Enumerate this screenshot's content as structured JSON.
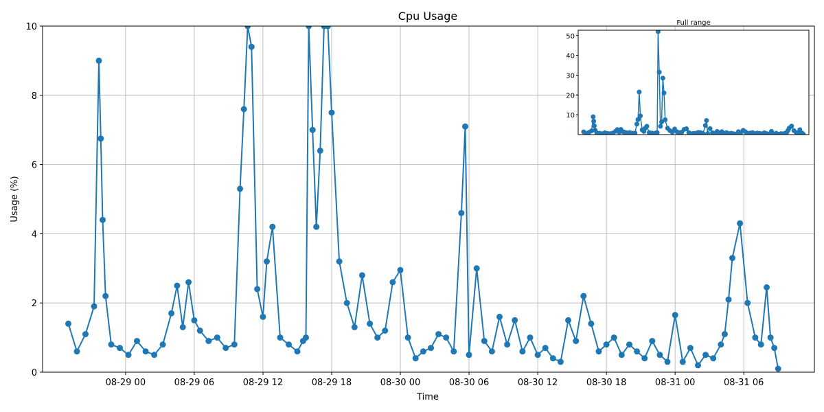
{
  "chart_data": {
    "type": "line",
    "title": "Cpu Usage",
    "xlabel": "Time",
    "ylabel": "Usage (%)",
    "ylim": [
      0,
      10
    ],
    "xlim": [
      "2024-08-28 16:45",
      "2024-08-31 12:10"
    ],
    "grid": true,
    "color": "#1f77b4",
    "marker": "circle",
    "x_ticks": [
      {
        "at": "2024-08-29 00:00",
        "label": "08-29 00"
      },
      {
        "at": "2024-08-29 06:00",
        "label": "08-29 06"
      },
      {
        "at": "2024-08-29 12:00",
        "label": "08-29 12"
      },
      {
        "at": "2024-08-29 18:00",
        "label": "08-29 18"
      },
      {
        "at": "2024-08-30 00:00",
        "label": "08-30 00"
      },
      {
        "at": "2024-08-30 06:00",
        "label": "08-30 06"
      },
      {
        "at": "2024-08-30 12:00",
        "label": "08-30 12"
      },
      {
        "at": "2024-08-30 18:00",
        "label": "08-30 18"
      },
      {
        "at": "2024-08-31 00:00",
        "label": "08-31 00"
      },
      {
        "at": "2024-08-31 06:00",
        "label": "08-31 06"
      }
    ],
    "y_ticks": [
      0,
      2,
      4,
      6,
      8,
      10
    ],
    "series": [
      {
        "x": [
          "2024-08-28 19:00",
          "2024-08-28 19:45",
          "2024-08-28 20:30",
          "2024-08-28 21:15",
          "2024-08-28 21:40",
          "2024-08-28 21:50",
          "2024-08-28 22:00",
          "2024-08-28 22:15",
          "2024-08-28 22:45",
          "2024-08-28 23:30",
          "2024-08-29 00:15",
          "2024-08-29 01:00",
          "2024-08-29 01:45",
          "2024-08-29 02:30",
          "2024-08-29 03:15",
          "2024-08-29 04:00",
          "2024-08-29 04:30",
          "2024-08-29 05:00",
          "2024-08-29 05:30",
          "2024-08-29 06:00",
          "2024-08-29 06:30",
          "2024-08-29 07:15",
          "2024-08-29 08:00",
          "2024-08-29 08:45",
          "2024-08-29 09:30",
          "2024-08-29 10:00",
          "2024-08-29 10:20",
          "2024-08-29 10:40",
          "2024-08-29 11:00",
          "2024-08-29 11:30",
          "2024-08-29 12:00",
          "2024-08-29 12:20",
          "2024-08-29 12:50",
          "2024-08-29 13:30",
          "2024-08-29 14:15",
          "2024-08-29 15:00",
          "2024-08-29 15:30",
          "2024-08-29 15:45",
          "2024-08-29 16:00",
          "2024-08-29 16:20",
          "2024-08-29 16:40",
          "2024-08-29 17:00",
          "2024-08-29 17:20",
          "2024-08-29 17:40",
          "2024-08-29 18:00",
          "2024-08-29 18:40",
          "2024-08-29 19:20",
          "2024-08-29 20:00",
          "2024-08-29 20:40",
          "2024-08-29 21:20",
          "2024-08-29 22:00",
          "2024-08-29 22:40",
          "2024-08-29 23:20",
          "2024-08-30 00:00",
          "2024-08-30 00:40",
          "2024-08-30 01:20",
          "2024-08-30 02:00",
          "2024-08-30 02:40",
          "2024-08-30 03:20",
          "2024-08-30 04:00",
          "2024-08-30 04:40",
          "2024-08-30 05:20",
          "2024-08-30 05:40",
          "2024-08-30 06:00",
          "2024-08-30 06:40",
          "2024-08-30 07:20",
          "2024-08-30 08:00",
          "2024-08-30 08:40",
          "2024-08-30 09:20",
          "2024-08-30 10:00",
          "2024-08-30 10:40",
          "2024-08-30 11:20",
          "2024-08-30 12:00",
          "2024-08-30 12:40",
          "2024-08-30 13:20",
          "2024-08-30 14:00",
          "2024-08-30 14:40",
          "2024-08-30 15:20",
          "2024-08-30 16:00",
          "2024-08-30 16:40",
          "2024-08-30 17:20",
          "2024-08-30 18:00",
          "2024-08-30 18:40",
          "2024-08-30 19:20",
          "2024-08-30 20:00",
          "2024-08-30 20:40",
          "2024-08-30 21:20",
          "2024-08-30 22:00",
          "2024-08-30 22:40",
          "2024-08-30 23:20",
          "2024-08-31 00:00",
          "2024-08-31 00:40",
          "2024-08-31 01:20",
          "2024-08-31 02:00",
          "2024-08-31 02:40",
          "2024-08-31 03:20",
          "2024-08-31 04:00",
          "2024-08-31 04:20",
          "2024-08-31 04:40",
          "2024-08-31 05:00",
          "2024-08-31 05:40",
          "2024-08-31 06:20",
          "2024-08-31 07:00",
          "2024-08-31 07:30",
          "2024-08-31 08:00",
          "2024-08-31 08:20",
          "2024-08-31 08:40",
          "2024-08-31 09:00"
        ],
        "y": [
          1.4,
          0.6,
          1.1,
          1.9,
          9.0,
          6.75,
          4.4,
          2.2,
          0.8,
          0.7,
          0.5,
          0.9,
          0.6,
          0.5,
          0.8,
          1.7,
          2.5,
          1.3,
          2.6,
          1.5,
          1.2,
          0.9,
          1.0,
          0.7,
          0.8,
          5.3,
          7.6,
          10.0,
          9.4,
          2.4,
          1.6,
          3.2,
          4.2,
          1.0,
          0.8,
          0.6,
          0.9,
          1.0,
          10.0,
          7.0,
          4.2,
          6.4,
          10.0,
          10.0,
          7.5,
          3.2,
          2.0,
          1.3,
          2.8,
          1.4,
          1.0,
          1.2,
          2.6,
          2.95,
          1.0,
          0.4,
          0.6,
          0.7,
          1.1,
          1.0,
          0.6,
          4.6,
          7.1,
          0.5,
          3.0,
          0.9,
          0.6,
          1.6,
          0.8,
          1.5,
          0.6,
          1.0,
          0.5,
          0.7,
          0.4,
          0.3,
          1.5,
          0.9,
          2.2,
          1.4,
          0.6,
          0.8,
          1.0,
          0.5,
          0.8,
          0.6,
          0.4,
          0.9,
          0.5,
          0.3,
          1.65,
          0.3,
          0.7,
          0.2,
          0.5,
          0.4,
          0.8,
          1.1,
          2.1,
          3.3,
          4.3,
          2.0,
          1.0,
          0.8,
          2.45,
          1.0,
          0.7,
          0.1
        ],
        "inset_y": [
          1.4,
          0.6,
          1.1,
          1.9,
          9.0,
          6.75,
          4.4,
          2.2,
          0.8,
          0.7,
          0.5,
          0.9,
          0.6,
          0.5,
          0.8,
          1.7,
          2.5,
          1.3,
          2.6,
          1.5,
          1.2,
          0.9,
          1.0,
          0.7,
          0.8,
          5.3,
          7.6,
          21.5,
          9.4,
          2.4,
          1.6,
          3.2,
          4.2,
          1.0,
          0.8,
          0.6,
          0.9,
          1.0,
          52,
          31.5,
          4.2,
          6.4,
          28.5,
          21,
          7.5,
          3.2,
          2.0,
          1.3,
          2.8,
          1.4,
          1.0,
          1.2,
          2.6,
          2.95,
          1.0,
          0.4,
          0.6,
          0.7,
          1.1,
          1.0,
          0.6,
          4.6,
          7.1,
          0.5,
          3.0,
          0.9,
          0.6,
          1.6,
          0.8,
          1.5,
          0.6,
          1.0,
          0.5,
          0.7,
          0.4,
          0.3,
          1.5,
          0.9,
          2.2,
          1.4,
          0.6,
          0.8,
          1.0,
          0.5,
          0.8,
          0.6,
          0.4,
          0.9,
          0.5,
          0.3,
          1.65,
          0.3,
          0.7,
          0.2,
          0.5,
          0.4,
          0.8,
          1.1,
          2.1,
          3.3,
          4.3,
          2.0,
          1.0,
          0.8,
          2.45,
          1.0,
          0.7,
          0.1
        ]
      }
    ],
    "inset": {
      "title": "Full range",
      "ylim": [
        0,
        52
      ],
      "y_ticks": [
        10,
        20,
        30,
        40,
        50
      ]
    }
  }
}
